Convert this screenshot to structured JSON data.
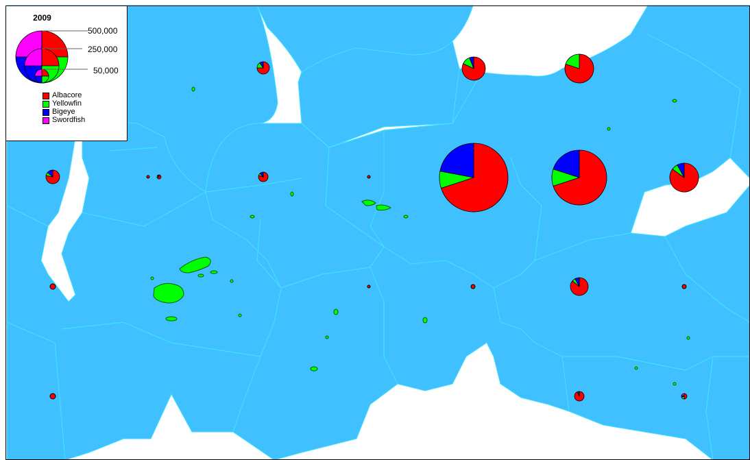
{
  "legend": {
    "year": "2009",
    "size_labels": [
      "500,000",
      "250,000",
      "50,000"
    ],
    "species": [
      {
        "label": "Albacore",
        "color": "#ff0000"
      },
      {
        "label": "Yellowfin",
        "color": "#00ff00"
      },
      {
        "label": "Bigeye",
        "color": "#0000ff"
      },
      {
        "label": "Swordfish",
        "color": "#ff00ff"
      }
    ]
  },
  "colors": {
    "ocean": "#40c0ff",
    "zone_border": "#40e0ff",
    "land": "#00ff00",
    "land_outline": "#006000",
    "pie_outline": "#000000"
  },
  "catch_points": [
    {
      "id": "pie-01",
      "shares": [
        0.7,
        0.08,
        0.22,
        0.0
      ]
    },
    {
      "id": "pie-02",
      "shares": [
        0.7,
        0.1,
        0.2,
        0.0
      ]
    },
    {
      "id": "pie-03",
      "shares": [
        0.85,
        0.07,
        0.08,
        0.0
      ]
    },
    {
      "id": "pie-04",
      "shares": [
        0.82,
        0.12,
        0.06,
        0.0
      ]
    },
    {
      "id": "pie-05",
      "shares": [
        0.8,
        0.2,
        0.0,
        0.0
      ]
    },
    {
      "id": "pie-06",
      "shares": [
        0.75,
        0.15,
        0.1,
        0.0
      ]
    },
    {
      "id": "pie-07",
      "shares": [
        0.78,
        0.08,
        0.14,
        0.0
      ]
    },
    {
      "id": "pie-08",
      "shares": [
        0.8,
        0.08,
        0.12,
        0.0
      ]
    },
    {
      "id": "pie-09",
      "shares": [
        0.86,
        0.06,
        0.08,
        0.0
      ]
    },
    {
      "id": "pie-10",
      "shares": [
        0.93,
        0.04,
        0.03,
        0.0
      ]
    },
    {
      "id": "pie-11",
      "shares": [
        1.0,
        0.0,
        0.0,
        0.0
      ]
    },
    {
      "id": "pie-12",
      "shares": [
        1.0,
        0.0,
        0.0,
        0.0
      ]
    },
    {
      "id": "pie-13",
      "shares": [
        1.0,
        0.0,
        0.0,
        0.0
      ]
    },
    {
      "id": "pie-14",
      "shares": [
        1.0,
        0.0,
        0.0,
        0.0
      ]
    },
    {
      "id": "pie-15",
      "shares": [
        0.7,
        0.15,
        0.15,
        0.0
      ]
    },
    {
      "id": "pie-16",
      "shares": [
        0.5,
        0.2,
        0.1,
        0.2
      ]
    },
    {
      "id": "pie-17",
      "shares": [
        1.0,
        0.0,
        0.0,
        0.0
      ]
    },
    {
      "id": "pie-18",
      "shares": [
        1.0,
        0.0,
        0.0,
        0.0
      ]
    },
    {
      "id": "pie-19",
      "shares": [
        1.0,
        0.0,
        0.0,
        0.0
      ]
    }
  ]
}
